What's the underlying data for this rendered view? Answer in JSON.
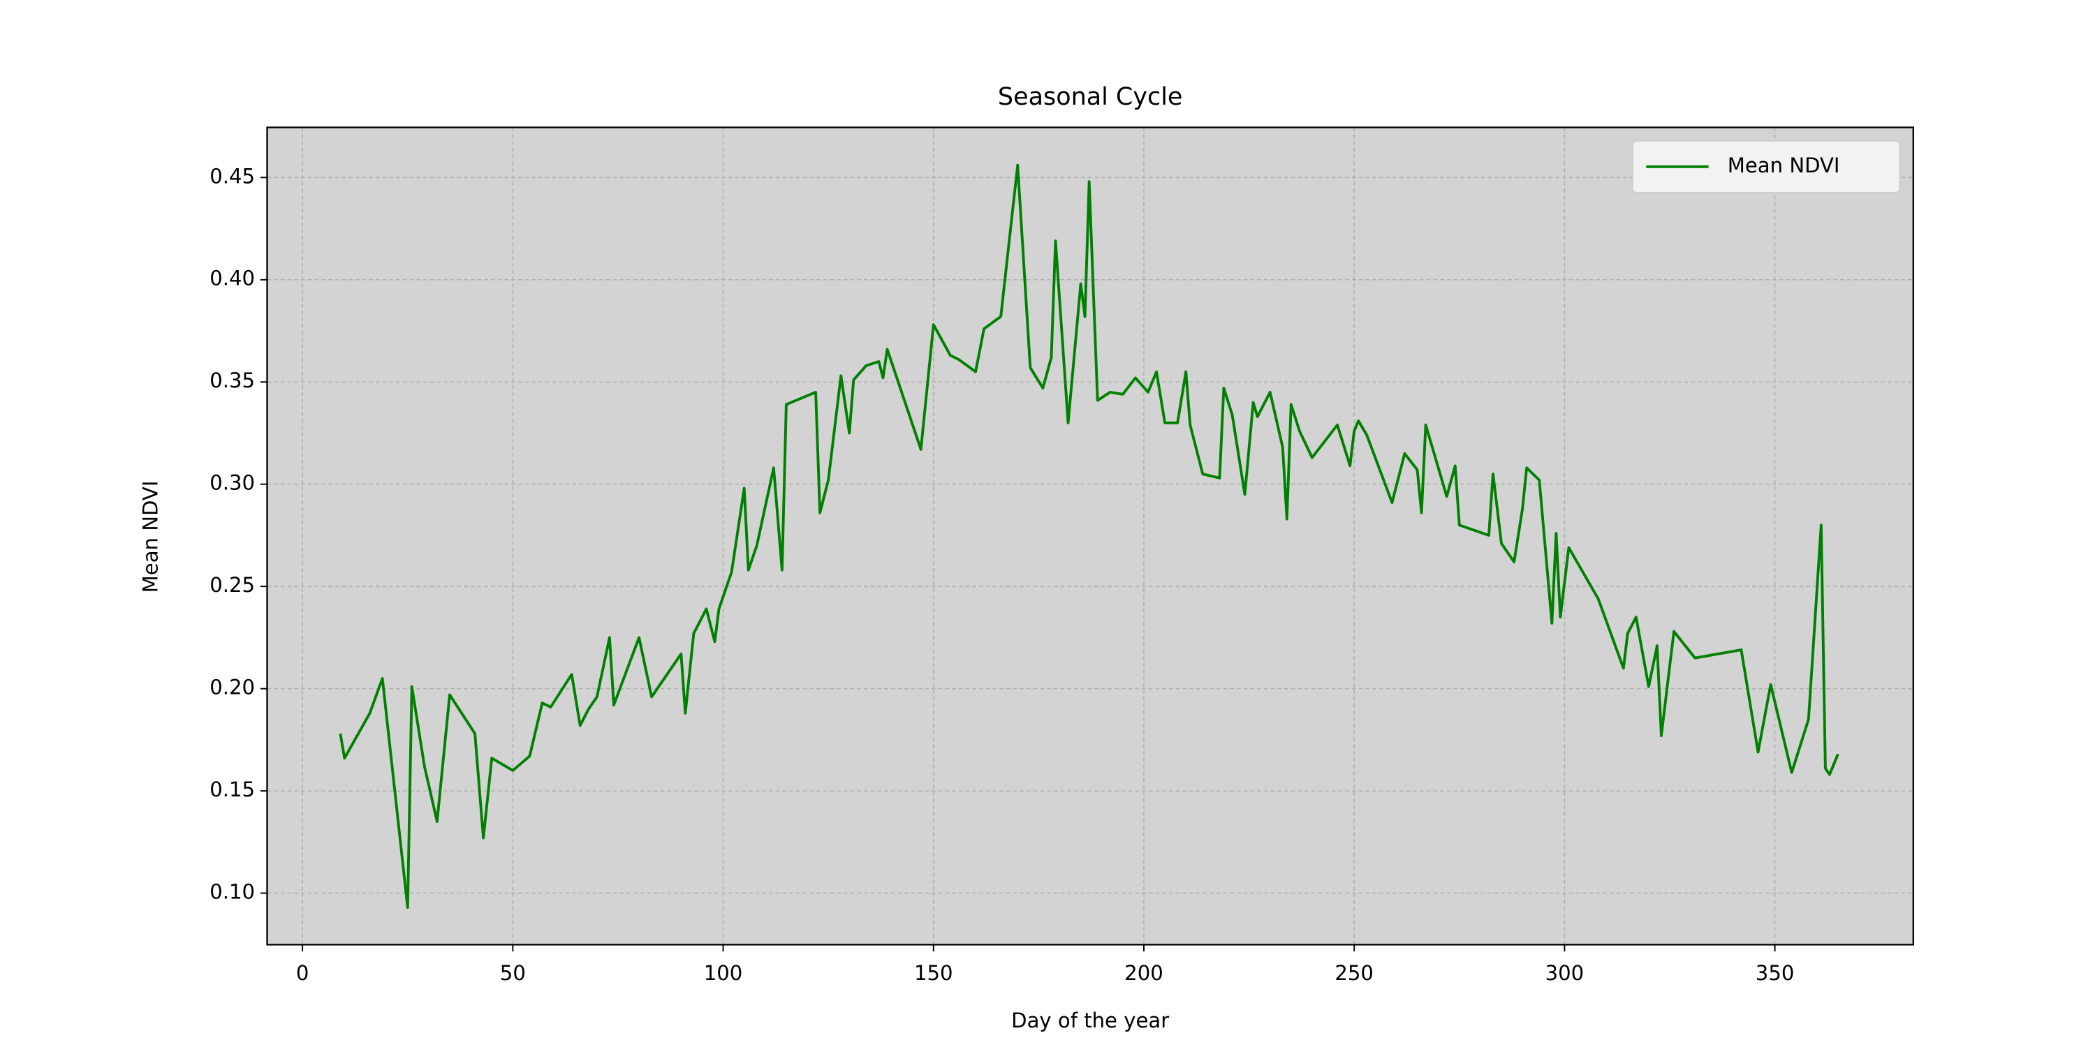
{
  "chart_data": {
    "type": "line",
    "title": "Seasonal Cycle",
    "x_label": "Day of the year",
    "y_label": "Mean NDVI",
    "x": [
      9,
      10,
      16,
      19,
      25,
      26,
      29,
      32,
      35,
      41,
      43,
      45,
      50,
      54,
      57,
      59,
      64,
      66,
      68,
      70,
      73,
      74,
      80,
      83,
      90,
      91,
      93,
      96,
      98,
      99,
      102,
      105,
      106,
      108,
      112,
      114,
      115,
      122,
      123,
      125,
      128,
      130,
      131,
      134,
      137,
      138,
      139,
      147,
      150,
      154,
      156,
      160,
      162,
      166,
      170,
      173,
      176,
      178,
      179,
      182,
      185,
      186,
      187,
      189,
      192,
      195,
      198,
      201,
      203,
      205,
      208,
      210,
      211,
      214,
      218,
      219,
      221,
      224,
      226,
      227,
      230,
      233,
      234,
      235,
      237,
      240,
      246,
      249,
      250,
      251,
      253,
      259,
      262,
      265,
      266,
      267,
      272,
      274,
      275,
      282,
      283,
      285,
      288,
      290,
      291,
      294,
      297,
      298,
      299,
      301,
      308,
      314,
      315,
      317,
      320,
      322,
      323,
      326,
      331,
      342,
      346,
      349,
      354,
      358,
      361,
      362,
      363,
      365
    ],
    "series": [
      {
        "name": "Mean NDVI",
        "color": "#008000",
        "values": [
          0.178,
          0.166,
          0.188,
          0.205,
          0.093,
          0.201,
          0.162,
          0.135,
          0.197,
          0.178,
          0.127,
          0.166,
          0.16,
          0.167,
          0.193,
          0.191,
          0.207,
          0.182,
          0.19,
          0.196,
          0.225,
          0.192,
          0.225,
          0.196,
          0.217,
          0.188,
          0.227,
          0.239,
          0.223,
          0.239,
          0.257,
          0.298,
          0.258,
          0.27,
          0.308,
          0.258,
          0.339,
          0.345,
          0.286,
          0.302,
          0.353,
          0.325,
          0.351,
          0.358,
          0.36,
          0.352,
          0.366,
          0.317,
          0.378,
          0.363,
          0.361,
          0.355,
          0.376,
          0.382,
          0.456,
          0.357,
          0.347,
          0.362,
          0.419,
          0.33,
          0.398,
          0.382,
          0.448,
          0.341,
          0.345,
          0.344,
          0.352,
          0.345,
          0.355,
          0.33,
          0.33,
          0.355,
          0.329,
          0.305,
          0.303,
          0.347,
          0.334,
          0.295,
          0.34,
          0.333,
          0.345,
          0.318,
          0.283,
          0.339,
          0.326,
          0.313,
          0.329,
          0.309,
          0.326,
          0.331,
          0.324,
          0.291,
          0.315,
          0.307,
          0.286,
          0.329,
          0.294,
          0.309,
          0.28,
          0.275,
          0.305,
          0.271,
          0.262,
          0.288,
          0.308,
          0.302,
          0.232,
          0.276,
          0.235,
          0.269,
          0.244,
          0.21,
          0.227,
          0.235,
          0.201,
          0.221,
          0.177,
          0.228,
          0.215,
          0.219,
          0.169,
          0.202,
          0.159,
          0.185,
          0.28,
          0.161,
          0.158,
          0.168
        ]
      }
    ],
    "xlim": [
      -8.4,
      382.9
    ],
    "ylim": [
      0.0748,
      0.4745
    ],
    "xticks": [
      0,
      50,
      100,
      150,
      200,
      250,
      300,
      350
    ],
    "yticks": [
      {
        "value": 0.1,
        "label": "0.10"
      },
      {
        "value": 0.15,
        "label": "0.15"
      },
      {
        "value": 0.2,
        "label": "0.20"
      },
      {
        "value": 0.25,
        "label": "0.25"
      },
      {
        "value": 0.3,
        "label": "0.30"
      },
      {
        "value": 0.35,
        "label": "0.35"
      },
      {
        "value": 0.4,
        "label": "0.40"
      },
      {
        "value": 0.45,
        "label": "0.45"
      }
    ],
    "grid": true,
    "legend": "upper right",
    "background": "#d3d3d3"
  }
}
